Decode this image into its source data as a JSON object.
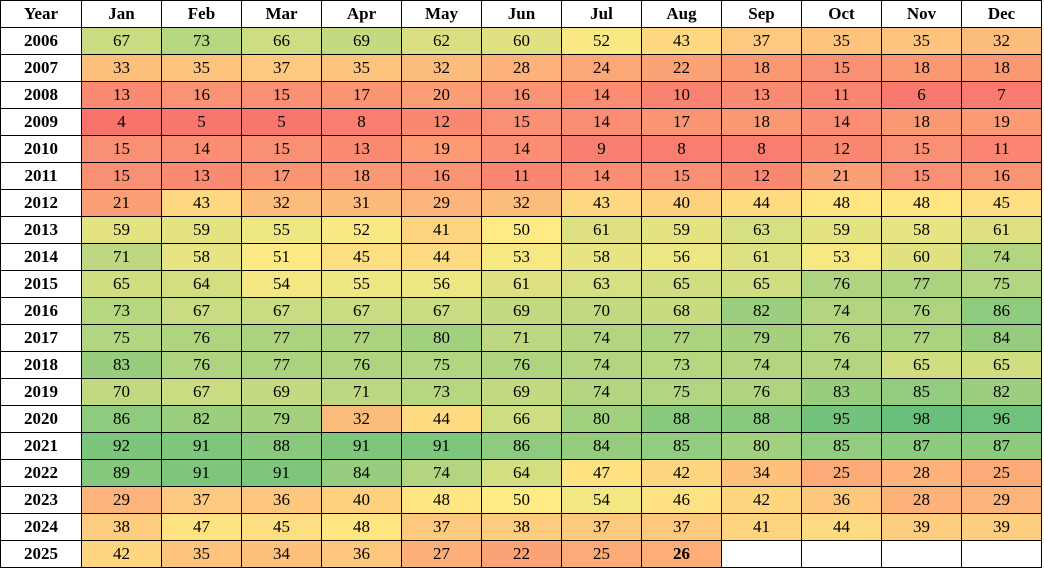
{
  "chart_data": {
    "type": "heatmap",
    "corner_label": "Year",
    "columns": [
      "Jan",
      "Feb",
      "Mar",
      "Apr",
      "May",
      "Jun",
      "Jul",
      "Aug",
      "Sep",
      "Oct",
      "Nov",
      "Dec"
    ],
    "rows": [
      "2006",
      "2007",
      "2008",
      "2009",
      "2010",
      "2011",
      "2012",
      "2013",
      "2014",
      "2015",
      "2016",
      "2017",
      "2018",
      "2019",
      "2020",
      "2021",
      "2022",
      "2023",
      "2024",
      "2025"
    ],
    "values": [
      [
        67,
        73,
        66,
        69,
        62,
        60,
        52,
        43,
        37,
        35,
        35,
        32
      ],
      [
        33,
        35,
        37,
        35,
        32,
        28,
        24,
        22,
        18,
        15,
        18,
        18
      ],
      [
        13,
        16,
        15,
        17,
        20,
        16,
        14,
        10,
        13,
        11,
        6,
        7
      ],
      [
        4,
        5,
        5,
        8,
        12,
        15,
        14,
        17,
        18,
        14,
        18,
        19
      ],
      [
        15,
        14,
        15,
        13,
        19,
        14,
        9,
        8,
        8,
        12,
        15,
        11
      ],
      [
        15,
        13,
        17,
        18,
        16,
        11,
        14,
        15,
        12,
        21,
        15,
        16
      ],
      [
        21,
        43,
        32,
        31,
        29,
        32,
        43,
        40,
        44,
        48,
        48,
        45
      ],
      [
        59,
        59,
        55,
        52,
        41,
        50,
        61,
        59,
        63,
        59,
        58,
        61
      ],
      [
        71,
        58,
        51,
        45,
        44,
        53,
        58,
        56,
        61,
        53,
        60,
        74
      ],
      [
        65,
        64,
        54,
        55,
        56,
        61,
        63,
        65,
        65,
        76,
        77,
        75
      ],
      [
        73,
        67,
        67,
        67,
        67,
        69,
        70,
        68,
        82,
        74,
        76,
        86
      ],
      [
        75,
        76,
        77,
        77,
        80,
        71,
        74,
        77,
        79,
        76,
        77,
        84
      ],
      [
        83,
        76,
        77,
        76,
        75,
        76,
        74,
        73,
        74,
        74,
        65,
        65
      ],
      [
        70,
        67,
        69,
        71,
        73,
        69,
        74,
        75,
        76,
        83,
        85,
        82
      ],
      [
        86,
        82,
        79,
        32,
        44,
        66,
        80,
        88,
        88,
        95,
        98,
        96
      ],
      [
        92,
        91,
        88,
        91,
        91,
        86,
        84,
        85,
        80,
        85,
        87,
        87
      ],
      [
        89,
        91,
        91,
        84,
        74,
        64,
        47,
        42,
        34,
        25,
        28,
        25
      ],
      [
        29,
        37,
        36,
        40,
        48,
        50,
        54,
        46,
        42,
        36,
        28,
        29
      ],
      [
        38,
        47,
        45,
        48,
        37,
        38,
        37,
        37,
        41,
        44,
        39,
        39
      ],
      [
        42,
        35,
        34,
        36,
        27,
        22,
        25,
        26,
        null,
        null,
        null,
        null
      ]
    ],
    "bold_cells": [
      [
        19,
        7
      ]
    ],
    "color_scale": {
      "low": "#f8696b",
      "mid": "#ffeb84",
      "high": "#63be7b",
      "range": [
        0,
        100
      ]
    }
  }
}
